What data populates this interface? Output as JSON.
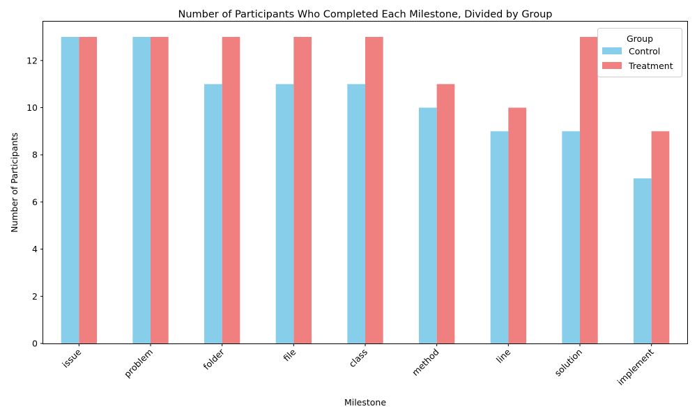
{
  "chart_data": {
    "type": "bar",
    "title": "Number of Participants Who Completed Each Milestone, Divided by Group",
    "xlabel": "Milestone",
    "ylabel": "Number of Participants",
    "categories": [
      "issue",
      "problem",
      "folder",
      "file",
      "class",
      "method",
      "line",
      "solution",
      "implement"
    ],
    "series": [
      {
        "name": "Control",
        "color": "#87ceeb",
        "values": [
          13,
          13,
          11,
          11,
          11,
          10,
          9,
          9,
          7
        ]
      },
      {
        "name": "Treatment",
        "color": "#f08080",
        "values": [
          13,
          13,
          13,
          13,
          13,
          11,
          10,
          13,
          9
        ]
      }
    ],
    "ylim": [
      0,
      13.65
    ],
    "yticks": [
      0,
      2,
      4,
      6,
      8,
      10,
      12
    ],
    "legend_title": "Group",
    "legend_position": "top-right",
    "grid": false
  }
}
